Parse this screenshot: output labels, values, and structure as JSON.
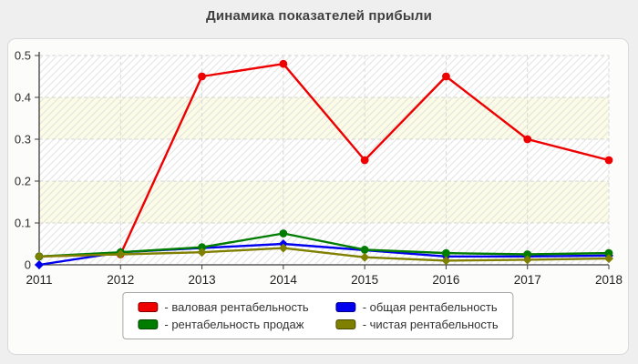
{
  "page": {
    "title": "Динамика показателей прибыли"
  },
  "chart_data": {
    "type": "line",
    "title": "Динамика показателей прибыли",
    "x": [
      2011,
      2012,
      2013,
      2014,
      2015,
      2016,
      2017,
      2018
    ],
    "xlabel": "",
    "ylabel": "",
    "ylim": [
      0,
      0.5
    ],
    "yticks": [
      0,
      0.1,
      0.2,
      0.3,
      0.4,
      0.5
    ],
    "grid": "dashed horizontal and vertical gridlines, hatched plot background with alternating cream bands",
    "legend_position": "bottom-center",
    "series": [
      {
        "name": "валовая рентабельность",
        "color": "#ee0000",
        "marker": "circle",
        "values": [
          0.02,
          0.025,
          0.45,
          0.48,
          0.25,
          0.45,
          0.3,
          0.25
        ]
      },
      {
        "name": "общая рентабельность",
        "color": "#0000ee",
        "marker": "diamond",
        "values": [
          0.0,
          0.03,
          0.04,
          0.05,
          0.035,
          0.02,
          0.02,
          0.022
        ]
      },
      {
        "name": "рентабельность продаж",
        "color": "#007d00",
        "marker": "circle",
        "values": [
          0.02,
          0.03,
          0.042,
          0.075,
          0.036,
          0.028,
          0.025,
          0.028
        ]
      },
      {
        "name": "чистая рентабельность",
        "color": "#808000",
        "marker": "diamond",
        "values": [
          0.02,
          0.025,
          0.03,
          0.04,
          0.018,
          0.01,
          0.012,
          0.015
        ]
      }
    ]
  },
  "legend": {
    "items": [
      {
        "label": "- валовая рентабельность",
        "color": "#ee0000"
      },
      {
        "label": "- общая рентабельность",
        "color": "#0000ee"
      },
      {
        "label": "- рентабельность продаж",
        "color": "#007d00"
      },
      {
        "label": "- чистая рентабельность",
        "color": "#808000"
      }
    ]
  }
}
